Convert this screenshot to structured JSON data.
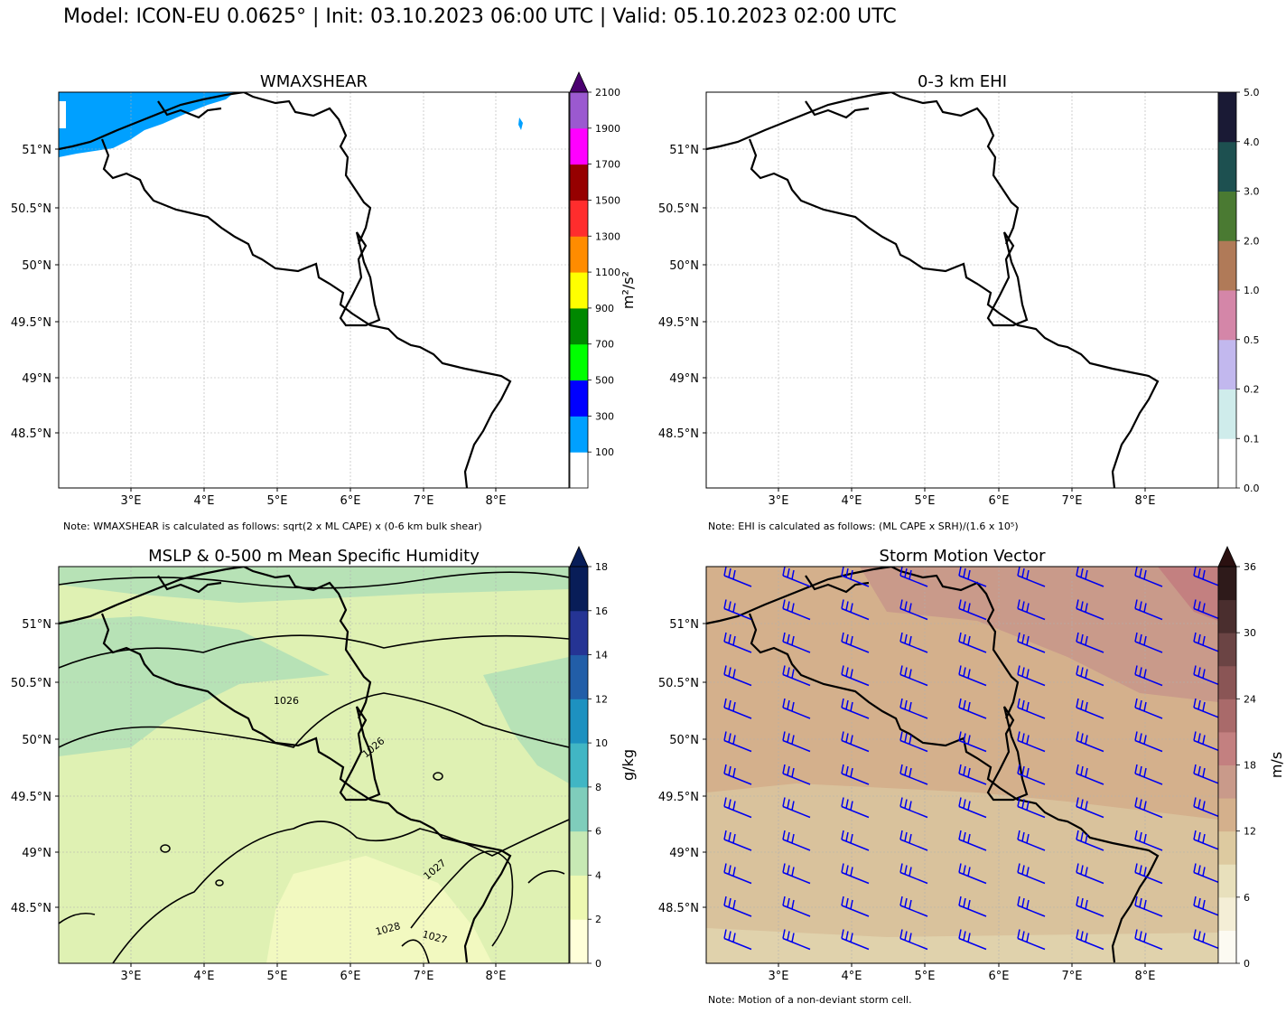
{
  "title": "Model: ICON-EU 0.0625° | Init: 03.10.2023 06:00 UTC | Valid: 05.10.2023 02:00 UTC",
  "lon_ticks": [
    "3°E",
    "4°E",
    "5°E",
    "6°E",
    "7°E",
    "8°E"
  ],
  "lat_ticks": [
    "51°N",
    "50.5°N",
    "50°N",
    "49.5°N",
    "49°N",
    "48.5°N"
  ],
  "panels": [
    {
      "title": "WMAXSHEAR",
      "colorbar": {
        "unit": "m²/s²",
        "extend_top": true,
        "tick_labels": [
          "100",
          "300",
          "500",
          "700",
          "900",
          "1100",
          "1300",
          "1500",
          "1700",
          "1900",
          "2100"
        ],
        "colors": [
          "#ffffff",
          "#00a0ff",
          "#0000ff",
          "#00ff00",
          "#008800",
          "#ffff00",
          "#ff8c00",
          "#ff2d2d",
          "#960000",
          "#ff00ff",
          "#9b59d0"
        ],
        "extend_color": "#4b0070"
      },
      "note": "Note: WMAXSHEAR is calculated as follows: sqrt(2 x ML CAPE) x (0-6 km bulk shear)",
      "field_color": "#00a0ff"
    },
    {
      "title": "0-3 km EHI",
      "colorbar": {
        "unit": "",
        "extend_top": false,
        "tick_labels": [
          "0.0",
          "0.1",
          "0.2",
          "0.5",
          "1.0",
          "2.0",
          "3.0",
          "4.0",
          "5.0"
        ],
        "colors": [
          "#ffffff",
          "#cfeceb",
          "#c2b8ee",
          "#d486a8",
          "#b07a58",
          "#4a7a32",
          "#1d5050",
          "#1a1a35"
        ]
      },
      "note": "Note: EHI is calculated as follows: (ML CAPE x SRH)/(1.6 x 10⁵)"
    },
    {
      "title": "MSLP & 0-500 m Mean Specific Humidity",
      "colorbar": {
        "unit": "g/kg",
        "extend_top": true,
        "tick_labels": [
          "0",
          "2",
          "4",
          "6",
          "8",
          "10",
          "12",
          "14",
          "16",
          "18"
        ],
        "colors": [
          "#ffffd9",
          "#edf8b1",
          "#c7e9b4",
          "#7fcdbb",
          "#41b6c4",
          "#1d91c0",
          "#225ea8",
          "#253494",
          "#081d58"
        ],
        "extend_color": "#081d58"
      },
      "isobar_labels": [
        "1026",
        "1026",
        "1027",
        "1028",
        "1027"
      ]
    },
    {
      "title": "Storm Motion Vector",
      "colorbar": {
        "unit": "m/s",
        "extend_top": true,
        "tick_labels": [
          "0",
          "6",
          "12",
          "18",
          "24",
          "30",
          "36"
        ],
        "colors": [
          "#fcfaf2",
          "#f4eed6",
          "#e8e0bc",
          "#ddcaa0",
          "#d4b08c",
          "#c99a8a",
          "#c38080",
          "#a96a6a",
          "#8a5555",
          "#6b4444",
          "#4a2e2e",
          "#2e1a1a"
        ],
        "extend_color": "#2a1010"
      },
      "note": "Note: Motion of a non-deviant storm cell."
    }
  ]
}
